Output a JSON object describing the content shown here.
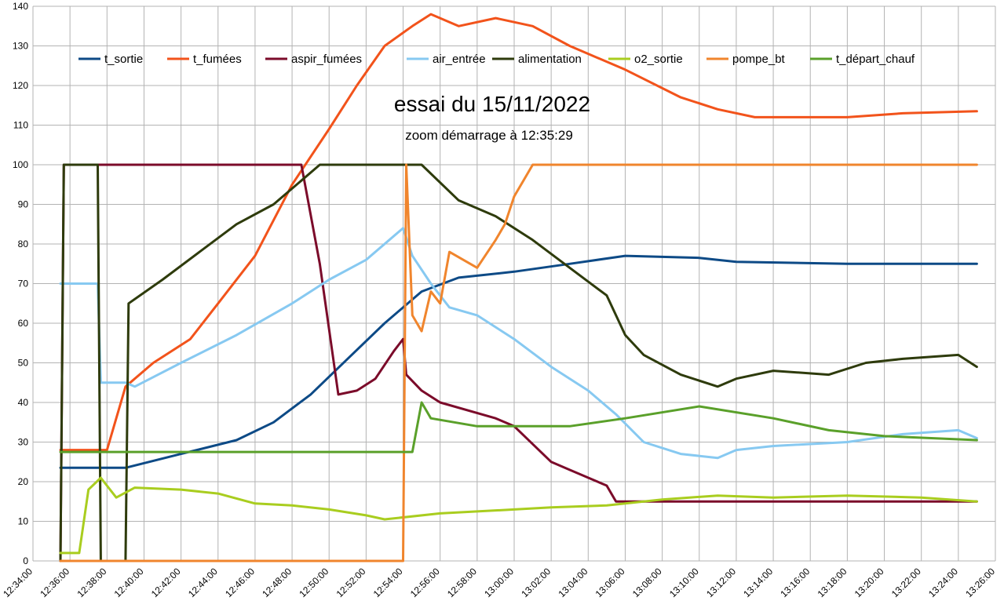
{
  "chart_data": {
    "type": "line",
    "title": "essai du 15/11/2022",
    "subtitle": "zoom démarrage à 12:35:29",
    "xlabel": "",
    "ylabel": "",
    "ylim": [
      0,
      140
    ],
    "yticks": [
      0,
      10,
      20,
      30,
      40,
      50,
      60,
      70,
      80,
      90,
      100,
      110,
      120,
      130,
      140
    ],
    "xlim": [
      "12:34:00",
      "13:26:00"
    ],
    "xticks": [
      "12:34:00",
      "12:36:00",
      "12:38:00",
      "12:40:00",
      "12:42:00",
      "12:44:00",
      "12:46:00",
      "12:48:00",
      "12:50:00",
      "12:52:00",
      "12:54:00",
      "12:56:00",
      "12:58:00",
      "13:00:00",
      "13:02:00",
      "13:04:00",
      "13:06:00",
      "13:08:00",
      "13:10:00",
      "13:12:00",
      "13:14:00",
      "13:16:00",
      "13:18:00",
      "13:20:00",
      "13:22:00",
      "13:24:00",
      "13:26:00"
    ],
    "grid": true,
    "legend_position": "top",
    "series": [
      {
        "name": "t_sortie",
        "color": "#0d4a86",
        "points": [
          [
            "12:35:29",
            23.5
          ],
          [
            "12:39:00",
            23.5
          ],
          [
            "12:42:00",
            27
          ],
          [
            "12:45:00",
            30.5
          ],
          [
            "12:47:00",
            35
          ],
          [
            "12:49:00",
            42
          ],
          [
            "12:51:00",
            51
          ],
          [
            "12:53:00",
            60
          ],
          [
            "12:55:00",
            68
          ],
          [
            "12:57:00",
            71.5
          ],
          [
            "13:00:00",
            73
          ],
          [
            "13:03:00",
            75
          ],
          [
            "13:06:00",
            77
          ],
          [
            "13:10:00",
            76.5
          ],
          [
            "13:12:00",
            75.5
          ],
          [
            "13:18:00",
            75
          ],
          [
            "13:25:00",
            75
          ]
        ]
      },
      {
        "name": "t_fumées",
        "color": "#f2531b",
        "points": [
          [
            "12:35:29",
            28
          ],
          [
            "12:38:00",
            28
          ],
          [
            "12:39:00",
            44
          ],
          [
            "12:40:30",
            50
          ],
          [
            "12:42:30",
            56
          ],
          [
            "12:44:00",
            65
          ],
          [
            "12:46:00",
            77
          ],
          [
            "12:48:00",
            95
          ],
          [
            "12:50:00",
            109
          ],
          [
            "12:51:30",
            120
          ],
          [
            "12:53:00",
            130
          ],
          [
            "12:54:30",
            135
          ],
          [
            "12:55:30",
            138
          ],
          [
            "12:57:00",
            135
          ],
          [
            "12:59:00",
            137
          ],
          [
            "13:01:00",
            135
          ],
          [
            "13:03:00",
            130
          ],
          [
            "13:06:00",
            124
          ],
          [
            "13:09:00",
            117
          ],
          [
            "13:11:00",
            114
          ],
          [
            "13:13:00",
            112
          ],
          [
            "13:18:00",
            112
          ],
          [
            "13:21:00",
            113
          ],
          [
            "13:25:00",
            113.5
          ]
        ]
      },
      {
        "name": "aspir_fumées",
        "color": "#7b0b2a",
        "points": [
          [
            "12:35:29",
            0
          ],
          [
            "12:35:40",
            100
          ],
          [
            "12:48:30",
            100
          ],
          [
            "12:49:30",
            75
          ],
          [
            "12:50:30",
            42
          ],
          [
            "12:51:30",
            43
          ],
          [
            "12:52:30",
            46
          ],
          [
            "12:53:30",
            53
          ],
          [
            "12:54:00",
            56
          ],
          [
            "12:54:10",
            47
          ],
          [
            "12:55:00",
            43
          ],
          [
            "12:56:00",
            40
          ],
          [
            "12:59:00",
            36
          ],
          [
            "13:00:00",
            34
          ],
          [
            "13:02:00",
            25
          ],
          [
            "13:03:00",
            23
          ],
          [
            "13:05:00",
            19
          ],
          [
            "13:05:30",
            15
          ],
          [
            "13:25:00",
            15
          ]
        ]
      },
      {
        "name": "air_entrée",
        "color": "#87c9f1",
        "points": [
          [
            "12:35:29",
            70
          ],
          [
            "12:37:30",
            70
          ],
          [
            "12:37:40",
            45
          ],
          [
            "12:39:00",
            45
          ],
          [
            "12:39:30",
            44
          ],
          [
            "12:42:00",
            50
          ],
          [
            "12:45:00",
            57
          ],
          [
            "12:48:00",
            65
          ],
          [
            "12:50:00",
            71
          ],
          [
            "12:52:00",
            76
          ],
          [
            "12:54:00",
            84
          ],
          [
            "12:54:30",
            77
          ],
          [
            "12:55:30",
            70
          ],
          [
            "12:56:30",
            64
          ],
          [
            "12:58:00",
            62
          ],
          [
            "13:00:00",
            56
          ],
          [
            "13:02:00",
            49
          ],
          [
            "13:04:00",
            43
          ],
          [
            "13:05:30",
            37
          ],
          [
            "13:07:00",
            30
          ],
          [
            "13:09:00",
            27
          ],
          [
            "13:11:00",
            26
          ],
          [
            "13:12:00",
            28
          ],
          [
            "13:14:00",
            29
          ],
          [
            "13:18:00",
            30
          ],
          [
            "13:21:00",
            32
          ],
          [
            "13:24:00",
            33
          ],
          [
            "13:25:00",
            31
          ]
        ]
      },
      {
        "name": "alimentation",
        "color": "#2e3b0c",
        "points": [
          [
            "12:35:29",
            0
          ],
          [
            "12:35:40",
            100
          ],
          [
            "12:37:30",
            100
          ],
          [
            "12:37:40",
            0
          ],
          [
            "12:39:00",
            0
          ],
          [
            "12:39:10",
            65
          ],
          [
            "12:41:00",
            71
          ],
          [
            "12:43:00",
            78
          ],
          [
            "12:45:00",
            85
          ],
          [
            "12:47:00",
            90
          ],
          [
            "12:48:30",
            96
          ],
          [
            "12:49:30",
            100
          ],
          [
            "12:55:00",
            100
          ],
          [
            "12:57:00",
            91
          ],
          [
            "12:59:00",
            87
          ],
          [
            "13:01:00",
            81
          ],
          [
            "13:03:00",
            74
          ],
          [
            "13:05:00",
            67
          ],
          [
            "13:06:00",
            57
          ],
          [
            "13:07:00",
            52
          ],
          [
            "13:09:00",
            47
          ],
          [
            "13:11:00",
            44
          ],
          [
            "13:12:00",
            46
          ],
          [
            "13:14:00",
            48
          ],
          [
            "13:17:00",
            47
          ],
          [
            "13:19:00",
            50
          ],
          [
            "13:21:00",
            51
          ],
          [
            "13:24:00",
            52
          ],
          [
            "13:25:00",
            49
          ]
        ]
      },
      {
        "name": "o2_sortie",
        "color": "#a9cd1f",
        "points": [
          [
            "12:35:29",
            2
          ],
          [
            "12:36:30",
            2
          ],
          [
            "12:37:00",
            18
          ],
          [
            "12:37:40",
            21
          ],
          [
            "12:38:30",
            16
          ],
          [
            "12:39:30",
            18.5
          ],
          [
            "12:42:00",
            18
          ],
          [
            "12:44:00",
            17
          ],
          [
            "12:46:00",
            14.5
          ],
          [
            "12:48:00",
            14
          ],
          [
            "12:50:00",
            13
          ],
          [
            "12:52:00",
            11.5
          ],
          [
            "12:53:00",
            10.5
          ],
          [
            "12:56:00",
            12
          ],
          [
            "12:58:00",
            12.5
          ],
          [
            "13:00:00",
            13
          ],
          [
            "13:02:00",
            13.5
          ],
          [
            "13:05:00",
            14
          ],
          [
            "13:08:00",
            15.5
          ],
          [
            "13:11:00",
            16.5
          ],
          [
            "13:14:00",
            16
          ],
          [
            "13:18:00",
            16.5
          ],
          [
            "13:22:00",
            16
          ],
          [
            "13:25:00",
            15
          ]
        ]
      },
      {
        "name": "pompe_bt",
        "color": "#f0852d",
        "points": [
          [
            "12:35:29",
            0
          ],
          [
            "12:54:00",
            0
          ],
          [
            "12:54:10",
            100
          ],
          [
            "12:54:30",
            62
          ],
          [
            "12:55:00",
            58
          ],
          [
            "12:55:30",
            68
          ],
          [
            "12:56:00",
            65
          ],
          [
            "12:56:30",
            78
          ],
          [
            "12:58:00",
            74
          ],
          [
            "12:59:00",
            81
          ],
          [
            "12:59:30",
            85
          ],
          [
            "13:00:00",
            92
          ],
          [
            "13:00:30",
            96
          ],
          [
            "13:01:00",
            100
          ],
          [
            "13:25:00",
            100
          ]
        ]
      },
      {
        "name": "t_départ_chauf",
        "color": "#5aa02a",
        "points": [
          [
            "12:35:29",
            27.5
          ],
          [
            "12:54:30",
            27.5
          ],
          [
            "12:55:00",
            40
          ],
          [
            "12:55:30",
            36
          ],
          [
            "12:58:00",
            34
          ],
          [
            "13:03:00",
            34
          ],
          [
            "13:06:00",
            36
          ],
          [
            "13:10:00",
            39
          ],
          [
            "13:14:00",
            36
          ],
          [
            "13:17:00",
            33
          ],
          [
            "13:20:00",
            31.5
          ],
          [
            "13:25:00",
            30.5
          ]
        ]
      }
    ]
  }
}
